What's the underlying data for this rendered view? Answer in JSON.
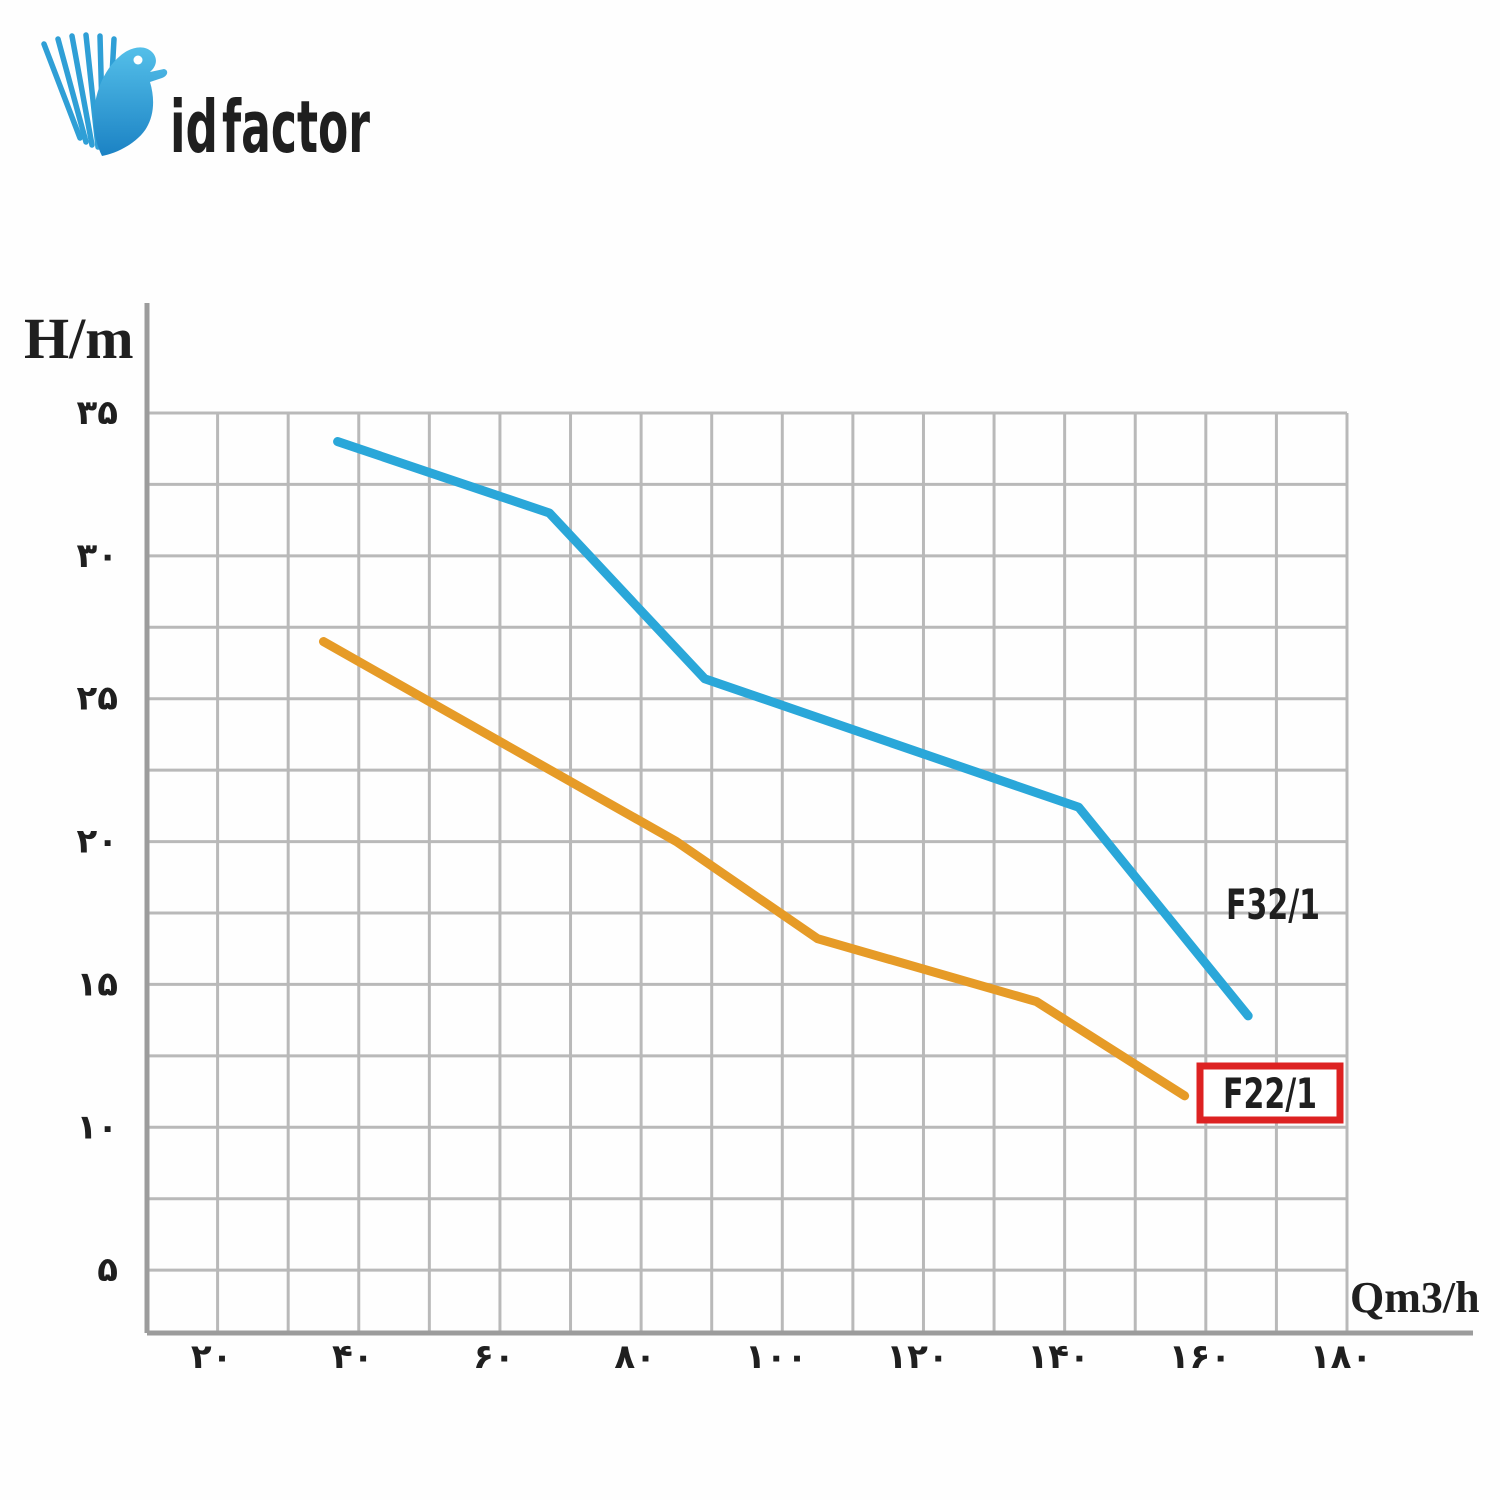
{
  "logo": {
    "id_text": "id",
    "factor_text": "factor",
    "blue": "#2b9fd8",
    "orange_start": "#ec9617",
    "orange_end": "#ffc93f"
  },
  "chart": {
    "y_axis_title": "H/m",
    "x_axis_title": "Qm3/h",
    "series_labels": {
      "f32": "F32/1",
      "f22": "F22/1"
    },
    "colors": {
      "grid": "#b9b9b9",
      "axis": "#9c9c9c",
      "blue_curve": "#2aa7d9",
      "orange_curve": "#e69b27",
      "label_box_border": "#dd2222",
      "text": "#1f1f1f"
    },
    "y_ticks": [
      {
        "label": "۳۵",
        "value": 35
      },
      {
        "label": "۳۰",
        "value": 30
      },
      {
        "label": "۲۵",
        "value": 25
      },
      {
        "label": "۲۰",
        "value": 20
      },
      {
        "label": "۱۵",
        "value": 15
      },
      {
        "label": "۱۰",
        "value": 10
      },
      {
        "label": "۵",
        "value": 5
      }
    ],
    "x_ticks": [
      {
        "label": "۲۰",
        "value": 20
      },
      {
        "label": "۴۰",
        "value": 40
      },
      {
        "label": "۶۰",
        "value": 60
      },
      {
        "label": "۸۰",
        "value": 80
      },
      {
        "label": "۱۰۰",
        "value": 100
      },
      {
        "label": "۱۲۰",
        "value": 120
      },
      {
        "label": "۱۴۰",
        "value": 140
      },
      {
        "label": "۱۶۰",
        "value": 160
      },
      {
        "label": "۱۸۰",
        "value": 180
      }
    ]
  },
  "chart_data": {
    "type": "line",
    "title": "Pump head curves",
    "xlabel": "Qm3/h",
    "ylabel": "H/m",
    "xlim": [
      10,
      180
    ],
    "ylim": [
      2.8,
      35
    ],
    "grid": true,
    "grid_minor_x": 10,
    "grid_minor_y": 2.5,
    "x_tick_step": 20,
    "y_tick_step": 5,
    "series": [
      {
        "name": "F32/1",
        "color": "#2aa7d9",
        "points": [
          [
            37,
            34
          ],
          [
            67,
            31.5
          ],
          [
            89,
            25.7
          ],
          [
            142,
            21.2
          ],
          [
            166,
            13.9
          ]
        ]
      },
      {
        "name": "F22/1",
        "color": "#e69b27",
        "points": [
          [
            35,
            27
          ],
          [
            85,
            20
          ],
          [
            105,
            16.6
          ],
          [
            136,
            14.4
          ],
          [
            157,
            11.1
          ]
        ]
      }
    ]
  }
}
